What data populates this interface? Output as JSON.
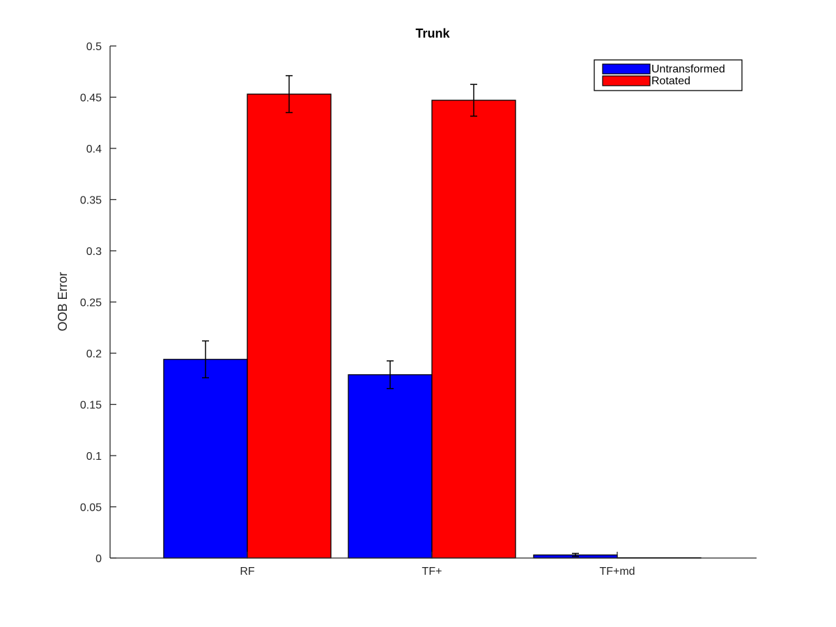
{
  "chart_data": {
    "type": "bar",
    "title": "Trunk",
    "xlabel": "",
    "ylabel": "OOB Error",
    "categories": [
      "RF",
      "TF+",
      "TF+md"
    ],
    "ylim": [
      0,
      0.5
    ],
    "yticks": [
      0,
      0.05,
      0.1,
      0.15,
      0.2,
      0.25,
      0.3,
      0.35,
      0.4,
      0.45,
      0.5
    ],
    "ytick_labels": [
      "0",
      "0.05",
      "0.1",
      "0.15",
      "0.2",
      "0.25",
      "0.3",
      "0.35",
      "0.4",
      "0.45",
      "0.5"
    ],
    "grid": false,
    "legend_position": "top-right",
    "series": [
      {
        "name": "Untransformed",
        "color": "#0000ff",
        "values": [
          0.194,
          0.179,
          0.003
        ],
        "error": [
          0.018,
          0.0135,
          0.0015
        ]
      },
      {
        "name": "Rotated",
        "color": "#ff0000",
        "values": [
          0.453,
          0.447,
          0.0003
        ],
        "error": [
          0.018,
          0.0155,
          0
        ]
      }
    ]
  }
}
